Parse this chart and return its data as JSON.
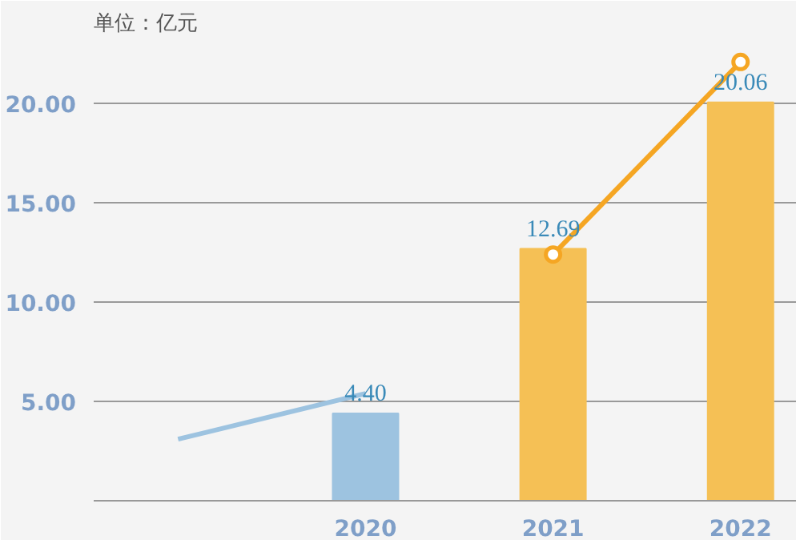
{
  "chart_data": {
    "type": "bar",
    "title": "单位：亿元",
    "categories": [
      null,
      "2020",
      "2021",
      "2022"
    ],
    "values": [
      null,
      4.4,
      12.69,
      20.06
    ],
    "colors": [
      "#9dc3e0",
      "#9dc3e0",
      "#f5c055",
      "#f5c055"
    ],
    "value_labels": [
      null,
      "4.40",
      "12.69",
      "20.06"
    ],
    "series": [
      {
        "type": "line",
        "color": "#9dc3e0",
        "values": [
          3.1,
          5.4,
          null,
          null
        ],
        "marker": "none"
      },
      {
        "type": "line",
        "color": "#f5a623",
        "values": [
          null,
          null,
          12.4,
          22.1
        ],
        "marker": "circle"
      }
    ],
    "ylim": [
      0,
      23
    ],
    "yticks": [
      {
        "value": 5,
        "label": "5.00"
      },
      {
        "value": 10,
        "label": "10.00"
      },
      {
        "value": 15,
        "label": "15.00"
      },
      {
        "value": 20,
        "label": "20.00"
      }
    ],
    "grid": "y"
  }
}
